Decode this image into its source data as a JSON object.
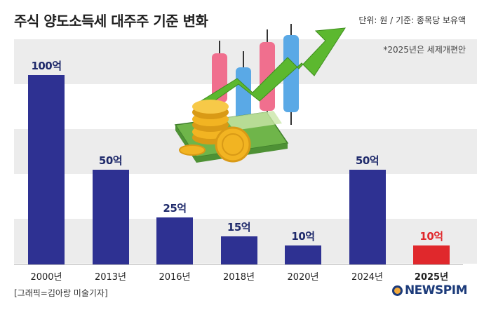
{
  "header": {
    "title": "주식 양도소득세 대주주 기준 변화",
    "unit_note": "단위: 원 / 기준: 종목당 보유액",
    "footnote": "*2025년은 세제개편안"
  },
  "chart_data": {
    "type": "bar",
    "title": "주식 양도소득세 대주주 기준 변화",
    "categories": [
      "2000년",
      "2013년",
      "2016년",
      "2018년",
      "2020년",
      "2024년",
      "2025년"
    ],
    "values": [
      100,
      50,
      25,
      15,
      10,
      50,
      10
    ],
    "value_labels": [
      "100억",
      "50억",
      "25억",
      "15억",
      "10억",
      "50억",
      "10억"
    ],
    "ylim": [
      0,
      100
    ],
    "xlabel": "",
    "ylabel": "",
    "highlight_category": "2025년",
    "colors": {
      "default": "#2e3192",
      "highlight": "#e0282c"
    },
    "grid": "horizontal bands"
  },
  "footer": {
    "credit": "[그래픽=김아랑 미술기자]",
    "logo_text": "NEWSPIM"
  },
  "illustration": {
    "icons": [
      "candlestick-icon",
      "trend-arrow-icon",
      "money-stack-icon",
      "gold-coin-icon"
    ],
    "colors": {
      "arrow": "#5cb82f",
      "candle_pink": "#f06f8e",
      "candle_blue": "#5aa9e6",
      "coin": "#f2b422",
      "cash": "#6fb54a"
    }
  }
}
